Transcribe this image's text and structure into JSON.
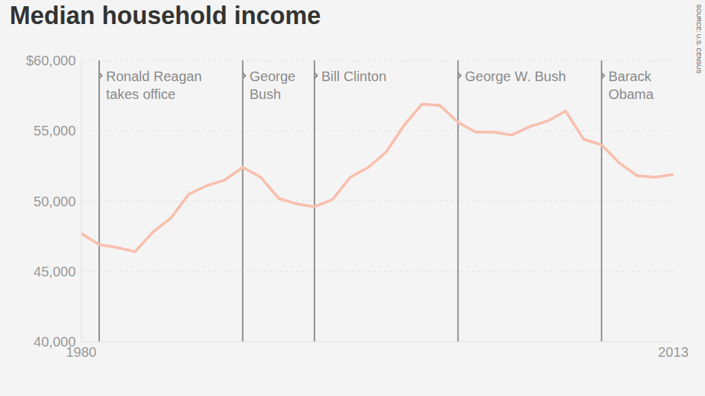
{
  "chart_data": {
    "type": "line",
    "title": "Median household income",
    "source": "SOURCE: U.S. CENSUS",
    "x": [
      1980,
      1981,
      1982,
      1983,
      1984,
      1985,
      1986,
      1987,
      1988,
      1989,
      1990,
      1991,
      1992,
      1993,
      1994,
      1995,
      1996,
      1997,
      1998,
      1999,
      2000,
      2001,
      2002,
      2003,
      2004,
      2005,
      2006,
      2007,
      2008,
      2009,
      2010,
      2011,
      2012,
      2013
    ],
    "values": [
      47700,
      46900,
      46700,
      46400,
      47800,
      48800,
      50500,
      51100,
      51500,
      52400,
      51700,
      50200,
      49800,
      49600,
      50100,
      51700,
      52400,
      53500,
      55400,
      56900,
      56800,
      55600,
      54900,
      54900,
      54700,
      55300,
      55700,
      56400,
      54400,
      54000,
      52700,
      51800,
      51700,
      51900
    ],
    "color": "#f9bfae",
    "xlim": [
      1980,
      2013
    ],
    "xticks": [
      1980,
      2013
    ],
    "ylim": [
      40000,
      60000
    ],
    "yticks": [
      {
        "value": 60000,
        "label": "$60,000"
      },
      {
        "value": 55000,
        "label": "55,000"
      },
      {
        "value": 50000,
        "label": "50,000"
      },
      {
        "value": 45000,
        "label": "45,000"
      },
      {
        "value": 40000,
        "label": "40,000"
      }
    ],
    "grid": true,
    "annotations": [
      {
        "x": 1981,
        "label": "Ronald Reagan\ntakes office"
      },
      {
        "x": 1989,
        "label": "George\nBush"
      },
      {
        "x": 1993,
        "label": "Bill Clinton"
      },
      {
        "x": 2001,
        "label": "George W. Bush"
      },
      {
        "x": 2009,
        "label": "Barack\nObama"
      }
    ]
  }
}
